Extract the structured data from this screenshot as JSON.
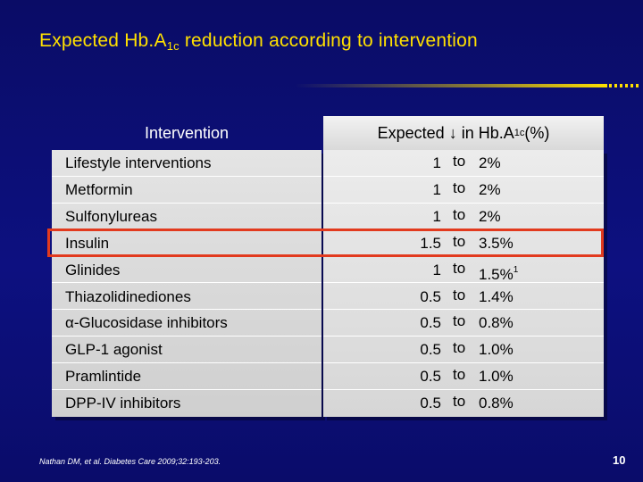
{
  "title": {
    "prefix": "Expected Hb.A",
    "subscript": "1c",
    "suffix": " reduction according  to intervention"
  },
  "table": {
    "header_left": "Intervention",
    "header_right": {
      "prefix": "Expected ↓ in Hb.A",
      "subscript": "1c",
      "suffix": " (%)"
    },
    "to_label": "to",
    "rows": [
      {
        "intervention": "Lifestyle interventions",
        "low": "1",
        "high": "2%",
        "note": ""
      },
      {
        "intervention": "Metformin",
        "low": "1",
        "high": "2%",
        "note": ""
      },
      {
        "intervention": "Sulfonylureas",
        "low": "1",
        "high": "2%",
        "note": ""
      },
      {
        "intervention": "Insulin",
        "low": "1.5",
        "high": "3.5%",
        "note": ""
      },
      {
        "intervention": "Glinides",
        "low": "1",
        "high": "1.5%",
        "note": "1"
      },
      {
        "intervention": "Thiazolidinediones",
        "low": "0.5",
        "high": "1.4%",
        "note": ""
      },
      {
        "intervention": "α-Glucosidase inhibitors",
        "low": "0.5",
        "high": "0.8%",
        "note": ""
      },
      {
        "intervention": "GLP-1 agonist",
        "low": "0.5",
        "high": "1.0%",
        "note": ""
      },
      {
        "intervention": "Pramlintide",
        "low": "0.5",
        "high": "1.0%",
        "note": ""
      },
      {
        "intervention": "DPP-IV inhibitors",
        "low": "0.5",
        "high": "0.8%",
        "note": ""
      }
    ],
    "highlighted_row": "Insulin"
  },
  "footnote": "Nathan DM, et al. Diabetes Care 2009;32:193-203.",
  "page_number": "10",
  "colors": {
    "background": "#0b0d6e",
    "title": "#ffe000",
    "highlight_border": "#e23a1e"
  }
}
